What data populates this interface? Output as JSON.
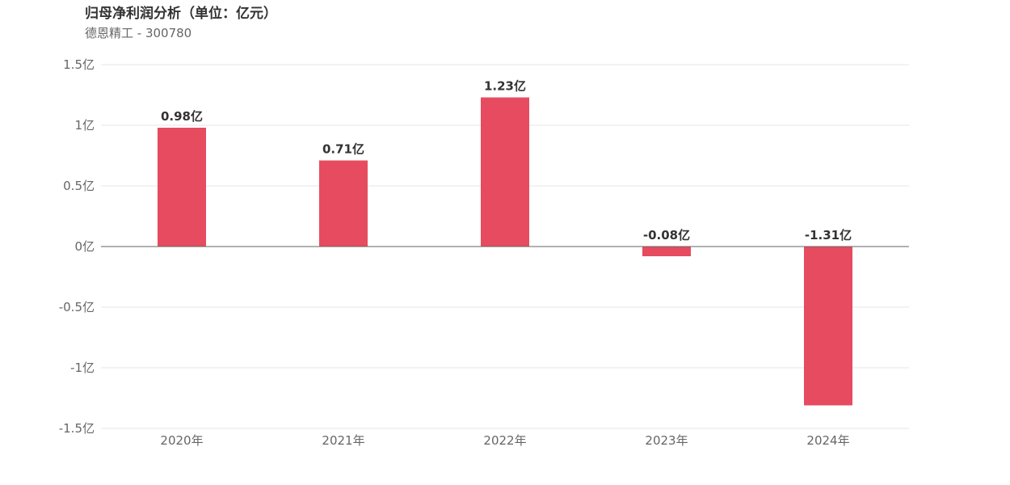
{
  "header": {
    "title": "归母净利润分析（单位：亿元）",
    "subtitle": "德恩精工 - 300780"
  },
  "colors": {
    "bar": "#e64b5f",
    "grid": "#e5e5e5",
    "zero_line": "#666666",
    "tick_text": "#666666",
    "label_text": "#333333"
  },
  "chart_data": {
    "type": "bar",
    "title": "归母净利润分析（单位：亿元）",
    "subtitle": "德恩精工 - 300780",
    "categories": [
      "2020年",
      "2021年",
      "2022年",
      "2023年",
      "2024年"
    ],
    "values": [
      0.98,
      0.71,
      1.23,
      -0.08,
      -1.31
    ],
    "data_labels": [
      "0.98亿",
      "0.71亿",
      "1.23亿",
      "-0.08亿",
      "-1.31亿"
    ],
    "ylim": [
      -1.5,
      1.5
    ],
    "yticks": [
      1.5,
      1,
      0.5,
      0,
      -0.5,
      -1,
      -1.5
    ],
    "ytick_labels": [
      "1.5亿",
      "1亿",
      "0.5亿",
      "0亿",
      "-0.5亿",
      "-1亿",
      "-1.5亿"
    ],
    "xlabel": "",
    "ylabel": "",
    "grid": true,
    "legend": "none"
  }
}
